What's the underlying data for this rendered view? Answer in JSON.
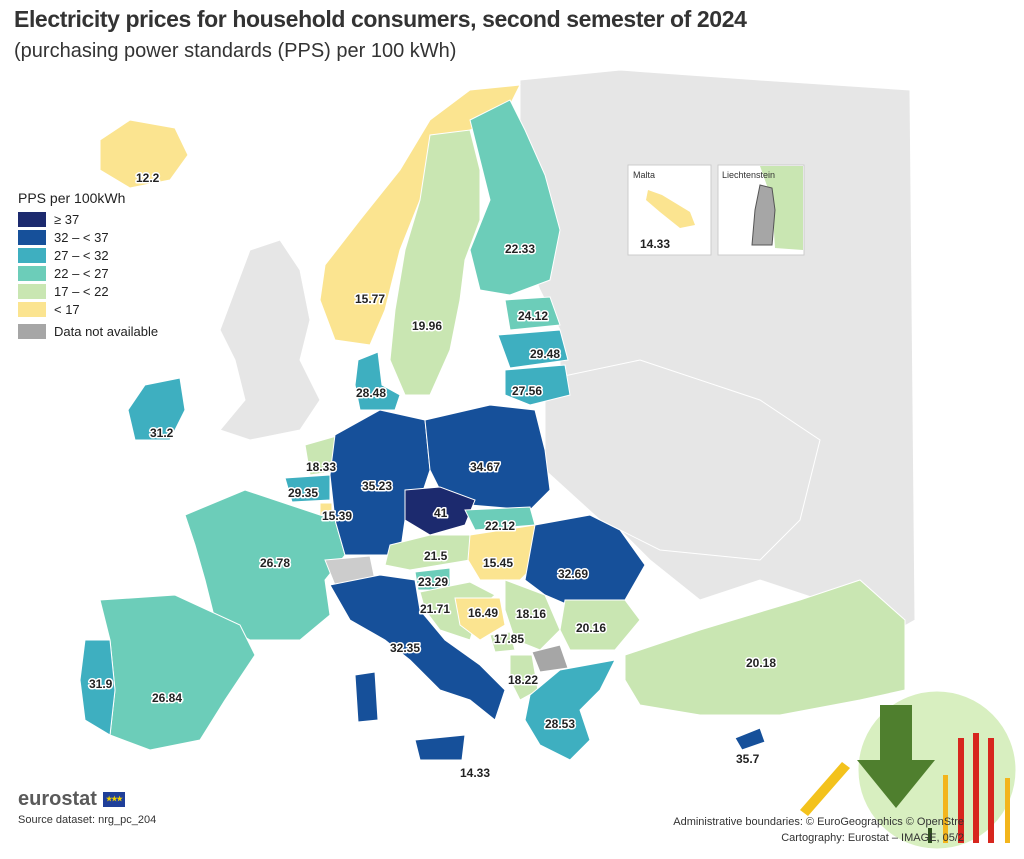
{
  "header": {
    "title": "Electricity prices for household consumers, second semester of 2024",
    "subtitle": "(purchasing power standards (PPS) per 100 kWh)"
  },
  "legend": {
    "title": "PPS per 100kWh",
    "classes": [
      {
        "label": "≥ 37",
        "color": "#1c2a6e"
      },
      {
        "label": "32 – < 37",
        "color": "#16509a"
      },
      {
        "label": "27 – < 32",
        "color": "#3eafc0"
      },
      {
        "label": "22 – < 27",
        "color": "#6ccdb9"
      },
      {
        "label": "17 – < 22",
        "color": "#c9e6b2"
      },
      {
        "label": "< 17",
        "color": "#fbe490"
      }
    ],
    "na_label": "Data not available",
    "na_color": "#a6a6a6"
  },
  "insets": {
    "malta": {
      "title": "Malta",
      "value": "14.33"
    },
    "liechtenstein": {
      "title": "Liechtenstein"
    }
  },
  "values": {
    "iceland": "12.2",
    "norway": "15.77",
    "sweden": "19.96",
    "finland": "22.33",
    "estonia": "24.12",
    "latvia": "29.48",
    "lithuania": "27.56",
    "denmark": "28.48",
    "ireland": "31.2",
    "netherlands": "18.33",
    "belgium": "29.35",
    "luxembourg": "15.39",
    "germany": "35.23",
    "poland": "34.67",
    "czechia": "41",
    "slovakia": "22.12",
    "austria": "21.5",
    "hungary": "15.45",
    "romania": "32.69",
    "slovenia": "23.29",
    "croatia": "21.71",
    "bosnia": "16.49",
    "serbia": "18.16",
    "montenegro": "17.85",
    "bulgaria": "20.16",
    "albania": "18.22",
    "france": "26.78",
    "spain": "26.84",
    "portugal": "31.9",
    "italy": "32.35",
    "sicily": "14.33",
    "greece": "28.53",
    "cyprus": "35.7",
    "turkey": "20.18"
  },
  "footer": {
    "brand": "eurostat",
    "source": "Source dataset: nrg_pc_204",
    "credits_line1": "Administrative boundaries: © EuroGeographics © OpenStre",
    "credits_line2": "Cartography: Eurostat – IMAGE, 05/2"
  }
}
